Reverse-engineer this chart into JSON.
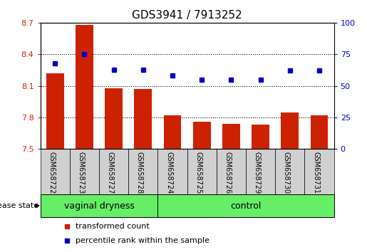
{
  "title": "GDS3941 / 7913252",
  "samples": [
    "GSM658722",
    "GSM658723",
    "GSM658727",
    "GSM658728",
    "GSM658724",
    "GSM658725",
    "GSM658726",
    "GSM658729",
    "GSM658730",
    "GSM658731"
  ],
  "groups": [
    "vaginal dryness",
    "vaginal dryness",
    "vaginal dryness",
    "vaginal dryness",
    "control",
    "control",
    "control",
    "control",
    "control",
    "control"
  ],
  "bar_values": [
    8.22,
    8.68,
    8.08,
    8.07,
    7.82,
    7.76,
    7.74,
    7.73,
    7.85,
    7.82
  ],
  "dot_values": [
    68,
    75,
    63,
    63,
    58,
    55,
    55,
    55,
    62,
    62
  ],
  "ylim_left": [
    7.5,
    8.7
  ],
  "ylim_right": [
    0,
    100
  ],
  "yticks_left": [
    7.5,
    7.8,
    8.1,
    8.4,
    8.7
  ],
  "yticks_right": [
    0,
    25,
    50,
    75,
    100
  ],
  "bar_color": "#CC2200",
  "dot_color": "#0000CC",
  "label_color_left": "#CC2200",
  "label_color_right": "#0000CC",
  "green_color": "#66ee66",
  "gray_color": "#d0d0d0",
  "legend_bar_label": "transformed count",
  "legend_dot_label": "percentile rank within the sample",
  "disease_state_label": "disease state",
  "group_boundary": 4,
  "bar_width": 0.6,
  "title_fontsize": 11,
  "tick_fontsize": 8,
  "sample_fontsize": 7,
  "group_fontsize": 9,
  "legend_fontsize": 8
}
